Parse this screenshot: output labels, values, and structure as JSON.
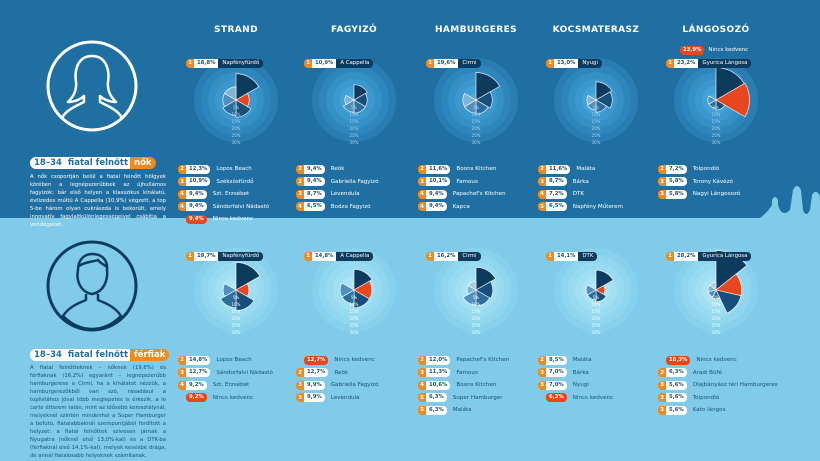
{
  "columns": [
    "STRAND",
    "FAGYIZÓ",
    "HAMBURGERES",
    "KOCSMATERASZ",
    "LÁNGOSOZÓ"
  ],
  "colors": {
    "top_bg": "#1f6fa3",
    "bottom_bg": "#7fcbe9",
    "accent": "#f08a1c",
    "red": "#e8461f",
    "dark": "#0d3b5e"
  },
  "female": {
    "segment": {
      "age": "18–34",
      "mid": "fiatal felnőtt",
      "gender": "nők"
    },
    "description": "A nők csoportján belül a fiatal felnőtt hölgyek körében a legnépszerűbbek az újhullámos fagyizók: bár első helyen a klasszikus kínálatú, évtizedes múltú A Cappella (10,9%) végzett, a top 5-be három olyan cukrászda is bekerült, amely innovatív fagylaltkülönlegességeivel csábítja a vendégeket."
  },
  "male": {
    "segment": {
      "age": "18–34",
      "mid": "fiatal felnőtt",
      "gender": "férfiak"
    },
    "description": "A fiatal felnőtteknek – nőknek (19,6%) és férfiaknak (16,2%) egyaránt – legnépszerűbb hamburgerese a Cirmi, ha a kínálatot nézzük, a hamburgerezőkből van szó, rásadásul a toplistához jóval több meglepetés is érkezik, a le carte étterem talán, mint az idősebb korosztálynál, melyeknél szintén mindenhol a Super Hamburger a befutó, fiatalabbaknál szempontjából fordított a helyzet: a fiatal felnőttek szívesen járnak a Nyugatra (nőknél első 13,0%-kal) és a DTK-ba (férfiaknál első 14,1%-kal), melyek kevésbé drága, de annál fiatalosabb helyeknek számítanak."
  },
  "chart_data": [
    {
      "type": "pie",
      "segment": "18–34 nők",
      "category": "STRAND",
      "top": {
        "rank": "1",
        "value": 18.8,
        "label": "18,8%",
        "name": "Napfényfürdő"
      },
      "slices": [
        18.8,
        12.3,
        10.9,
        9.4,
        9.4
      ],
      "highlight": "Nincs kedvenc",
      "highlight_value": 9.4,
      "ring_ticks": [
        "5%",
        "10%",
        "15%",
        "20%",
        "25%",
        "30%"
      ],
      "list": [
        {
          "rank": "2",
          "value": 12.3,
          "label": "12,3%",
          "name": "Lopos Beach"
        },
        {
          "rank": "3",
          "value": 10.9,
          "label": "10,9%",
          "name": "Széksósfürdő"
        },
        {
          "rank": "4",
          "value": 9.4,
          "label": "9,4%",
          "name": "Szt. Erzsébet"
        },
        {
          "rank": "4",
          "value": 9.4,
          "label": "9,4%",
          "name": "Sándorfalvi Nádastó"
        },
        {
          "rank": "",
          "value": 9.4,
          "label": "9,4%",
          "name": "Nincs kedvenc",
          "red": true
        }
      ]
    },
    {
      "type": "pie",
      "segment": "18–34 nők",
      "category": "FAGYIZÓ",
      "top": {
        "rank": "1",
        "value": 10.9,
        "label": "10,9%",
        "name": "A Cappella"
      },
      "slices": [
        10.9,
        9.4,
        9.4,
        8.7,
        6.5
      ],
      "ring_ticks": [
        "5%",
        "10%",
        "15%",
        "20%",
        "25%",
        "30%"
      ],
      "list": [
        {
          "rank": "2",
          "value": 9.4,
          "label": "9,4%",
          "name": "Reök"
        },
        {
          "rank": "2",
          "value": 9.4,
          "label": "9,4%",
          "name": "Gabriella Fagyizó"
        },
        {
          "rank": "3",
          "value": 8.7,
          "label": "8,7%",
          "name": "Levendula"
        },
        {
          "rank": "4",
          "value": 6.5,
          "label": "6,5%",
          "name": "Bodza Fagyizó"
        }
      ]
    },
    {
      "type": "pie",
      "segment": "18–34 nők",
      "category": "HAMBURGERES",
      "top": {
        "rank": "1",
        "value": 19.6,
        "label": "19,6%",
        "name": "Cirmi"
      },
      "slices": [
        19.6,
        11.6,
        10.1,
        9.4,
        9.4
      ],
      "ring_ticks": [
        "5%",
        "10%",
        "15%",
        "20%",
        "25%",
        "30%"
      ],
      "list": [
        {
          "rank": "2",
          "value": 11.6,
          "label": "11,6%",
          "name": "Boons Kitchen"
        },
        {
          "rank": "3",
          "value": 10.1,
          "label": "10,1%",
          "name": "Famous"
        },
        {
          "rank": "4",
          "value": 9.4,
          "label": "9,4%",
          "name": "Papachef's Kitchen"
        },
        {
          "rank": "4",
          "value": 9.4,
          "label": "9,4%",
          "name": "Kapca"
        }
      ]
    },
    {
      "type": "pie",
      "segment": "18–34 nők",
      "category": "KOCSMATERASZ",
      "top": {
        "rank": "1",
        "value": 13.0,
        "label": "13,0%",
        "name": "Nyugi"
      },
      "slices": [
        13.0,
        11.6,
        8.7,
        7.2,
        6.5
      ],
      "ring_ticks": [
        "5%",
        "10%",
        "15%",
        "20%",
        "25%",
        "30%"
      ],
      "list": [
        {
          "rank": "2",
          "value": 11.6,
          "label": "11,6%",
          "name": "Maláta"
        },
        {
          "rank": "3",
          "value": 8.7,
          "label": "8,7%",
          "name": "Bárka"
        },
        {
          "rank": "4",
          "value": 7.2,
          "label": "7,2%",
          "name": "DTK"
        },
        {
          "rank": "5",
          "value": 6.5,
          "label": "6,5%",
          "name": "Napfény Műterem"
        }
      ]
    },
    {
      "type": "pie",
      "segment": "18–34 nők",
      "category": "LÁNGOSOZÓ",
      "top": {
        "rank": "1",
        "value": 23.2,
        "label": "23,2%",
        "name": "Gyurica Lángosa"
      },
      "extra": {
        "label": "23,9%",
        "value": 23.9,
        "name": "Nincs kedvenc"
      },
      "slices": [
        23.2,
        7.2,
        5.8,
        5.8
      ],
      "highlight": "Nincs kedvenc",
      "highlight_value": 23.9,
      "ring_ticks": [
        "5%",
        "10%",
        "15%",
        "20%",
        "25%",
        "30%"
      ],
      "list": [
        {
          "rank": "2",
          "value": 7.2,
          "label": "7,2%",
          "name": "Tolpondló"
        },
        {
          "rank": "3",
          "value": 5.8,
          "label": "5,8%",
          "name": "Torony Kávézó"
        },
        {
          "rank": "3",
          "value": 5.8,
          "label": "5,8%",
          "name": "Nagyi Lángosozó"
        }
      ]
    },
    {
      "type": "pie",
      "segment": "18–34 férfiak",
      "category": "STRAND",
      "top": {
        "rank": "1",
        "value": 19.7,
        "label": "19,7%",
        "name": "Napfényfürdő"
      },
      "slices": [
        19.7,
        14.8,
        12.7,
        9.2
      ],
      "highlight": "Nincs kedvenc",
      "highlight_value": 9.2,
      "ring_ticks": [
        "5%",
        "10%",
        "15%",
        "20%",
        "25%",
        "30%"
      ],
      "list": [
        {
          "rank": "2",
          "value": 14.8,
          "label": "14,8%",
          "name": "Lopos Beach"
        },
        {
          "rank": "3",
          "value": 12.7,
          "label": "12,7%",
          "name": "Sándorfalvi Nádastó"
        },
        {
          "rank": "4",
          "value": 9.2,
          "label": "9,2%",
          "name": "Szt. Erzsébet"
        },
        {
          "rank": "",
          "value": 9.2,
          "label": "9,2%",
          "name": "Nincs kedvenc",
          "red": true
        }
      ]
    },
    {
      "type": "pie",
      "segment": "18–34 férfiak",
      "category": "FAGYIZÓ",
      "top": {
        "rank": "1",
        "value": 14.8,
        "label": "14,8%",
        "name": "A Cappella"
      },
      "slices": [
        14.8,
        12.7,
        9.9,
        9.9
      ],
      "highlight": "Nincs kedvenc",
      "highlight_value": 12.7,
      "ring_ticks": [
        "5%",
        "10%",
        "15%",
        "20%",
        "25%",
        "30%"
      ],
      "list": [
        {
          "rank": "",
          "value": 12.7,
          "label": "12,7%",
          "name": "Nincs kedvenc",
          "red": true
        },
        {
          "rank": "2",
          "value": 12.7,
          "label": "12,7%",
          "name": "Reök"
        },
        {
          "rank": "3",
          "value": 9.9,
          "label": "9,9%",
          "name": "Gabriella Fagyizó"
        },
        {
          "rank": "3",
          "value": 9.9,
          "label": "9,9%",
          "name": "Levendula"
        }
      ]
    },
    {
      "type": "pie",
      "segment": "18–34 férfiak",
      "category": "HAMBURGERES",
      "top": {
        "rank": "1",
        "value": 16.2,
        "label": "16,2%",
        "name": "Cirmi"
      },
      "slices": [
        16.2,
        12.0,
        11.3,
        10.6,
        6.3,
        6.3
      ],
      "ring_ticks": [
        "5%",
        "10%",
        "15%",
        "20%",
        "25%",
        "30%"
      ],
      "list": [
        {
          "rank": "2",
          "value": 12.0,
          "label": "12,0%",
          "name": "Papachef's Kitchen"
        },
        {
          "rank": "3",
          "value": 11.3,
          "label": "11,3%",
          "name": "Famous"
        },
        {
          "rank": "4",
          "value": 10.6,
          "label": "10,6%",
          "name": "Boons Kitchen"
        },
        {
          "rank": "5",
          "value": 6.3,
          "label": "6,3%",
          "name": "Super Hamburger"
        },
        {
          "rank": "5",
          "value": 6.3,
          "label": "6,3%",
          "name": "Maláta"
        }
      ]
    },
    {
      "type": "pie",
      "segment": "18–34 férfiak",
      "category": "KOCSMATERASZ",
      "top": {
        "rank": "1",
        "value": 14.1,
        "label": "14,1%",
        "name": "DTK"
      },
      "slices": [
        14.1,
        8.5,
        7.0,
        7.0
      ],
      "highlight": "Nincs kedvenc",
      "highlight_value": 6.3,
      "ring_ticks": [
        "5%",
        "10%",
        "15%",
        "20%",
        "25%",
        "30%"
      ],
      "list": [
        {
          "rank": "2",
          "value": 8.5,
          "label": "8,5%",
          "name": "Maláta"
        },
        {
          "rank": "3",
          "value": 7.0,
          "label": "7,0%",
          "name": "Bárka"
        },
        {
          "rank": "3",
          "value": 7.0,
          "label": "7,0%",
          "name": "Nyugi"
        },
        {
          "rank": "",
          "value": 6.3,
          "label": "6,3%",
          "name": "Nincs kedvenc",
          "red": true
        }
      ]
    },
    {
      "type": "pie",
      "segment": "18–34 férfiak",
      "category": "LÁNGOSOZÓ",
      "top": {
        "rank": "1",
        "value": 28.2,
        "label": "28,2%",
        "name": "Gyurica Lángosa"
      },
      "slices": [
        28.2,
        18.3,
        6.3,
        5.6,
        5.6,
        5.6
      ],
      "highlight": "Nincs kedvenc",
      "highlight_value": 18.3,
      "ring_ticks": [
        "5%",
        "10%",
        "15%",
        "20%",
        "25%",
        "30%"
      ],
      "list": [
        {
          "rank": "",
          "value": 18.3,
          "label": "18,3%",
          "name": "Nincs kedvenc",
          "red": true
        },
        {
          "rank": "2",
          "value": 6.3,
          "label": "6,3%",
          "name": "Aradi Büfé"
        },
        {
          "rank": "3",
          "value": 5.6,
          "label": "5,6%",
          "name": "Olajbányász téri Hamburgeres"
        },
        {
          "rank": "3",
          "value": 5.6,
          "label": "5,6%",
          "name": "Tolpondló"
        },
        {
          "rank": "3",
          "value": 5.6,
          "label": "5,6%",
          "name": "Kato lángos"
        }
      ]
    }
  ]
}
